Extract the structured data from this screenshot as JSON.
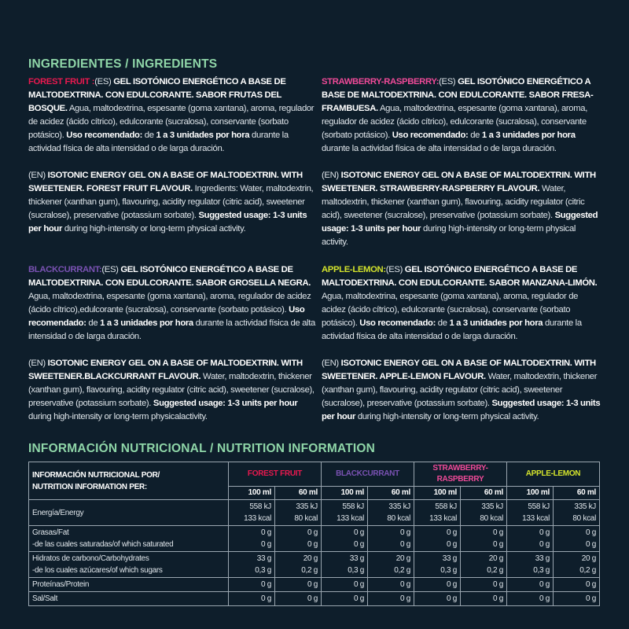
{
  "ingredients_title": "INGREDIENTES / INGREDIENTS",
  "nutrition_title": "INFORMACIÓN NUTRICIONAL / NUTRITION INFORMATION",
  "colors": {
    "forest_fruit": "#e8194f",
    "blackcurrant": "#7a52b3",
    "strawberry_raspberry": "#ef4a98",
    "apple_lemon": "#d3e32c",
    "heading": "#8fd6a8"
  },
  "products": [
    {
      "name": "FOREST FRUIT :",
      "color": "#e8194f",
      "es": [
        [
          "(ES) ",
          0
        ],
        [
          "GEL ISOTÓNICO ENERGÉTICO A BASE DE MALTODEXTRINA. CON EDULCORANTE. SABOR FRUTAS DEL BOSQUE.",
          1
        ],
        [
          " Agua, maltodextrina, espesante (goma xantana), aroma, regulador de acidez (ácido cítrico), edulcorante (sucralosa), conservante (sorbato potásico). ",
          0
        ],
        [
          "Uso recomendado:",
          1
        ],
        [
          " de ",
          0
        ],
        [
          "1 a 3 unidades por hora",
          1
        ],
        [
          " durante la actividad física de alta intensidad o de larga duración.",
          0
        ]
      ],
      "en": [
        [
          "(EN) ",
          0
        ],
        [
          "ISOTONIC ENERGY GEL ON A BASE OF MALTODEXTRIN. WITH SWEETENER. FOREST FRUIT FLAVOUR.",
          1
        ],
        [
          " Ingredients: Water, maltodextrin, thickener (xanthan gum), flavouring, acidity regulator (citric acid), sweetener (sucralose), preservative (potassium sorbate). ",
          0
        ],
        [
          "Suggested usage: 1-3 units per hour",
          1
        ],
        [
          " during high-intensity or long-term physical activity.",
          0
        ]
      ]
    },
    {
      "name": "STRAWBERRY-RASPBERRY:",
      "color": "#ef4a98",
      "es": [
        [
          "(ES) ",
          0
        ],
        [
          "GEL ISOTÓNICO ENERGÉTICO A BASE DE MALTODEXTRINA. CON EDULCORANTE. SABOR FRESA-FRAMBUESA.",
          1
        ],
        [
          " Agua, maltodextrina, espesante (goma xantana), aroma, regulador de acidez (ácido cítrico), edulcorante (sucralosa), conservante (sorbato potásico). ",
          0
        ],
        [
          "Uso recomendado:",
          1
        ],
        [
          " de ",
          0
        ],
        [
          "1 a 3 unidades por hora",
          1
        ],
        [
          " durante la actividad física de alta intensidad o de larga duración.",
          0
        ]
      ],
      "en": [
        [
          "(EN) ",
          0
        ],
        [
          "ISOTONIC ENERGY GEL ON A BASE OF MALTODEXTRIN. WITH SWEETENER. STRAWBERRY-RASPBERRY FLAVOUR.",
          1
        ],
        [
          "  Water, maltodextrin, thickener (xanthan gum), flavouring, acidity regulator (citric acid), sweetener (sucralose), preservative (potassium sorbate). ",
          0
        ],
        [
          "Suggested usage: 1-3 units per hour",
          1
        ],
        [
          " during high-intensity or long-term physical activity.",
          0
        ]
      ]
    },
    {
      "name": "BLACKCURRANT:",
      "color": "#7a52b3",
      "es": [
        [
          "(ES) ",
          0
        ],
        [
          "GEL ISOTÓNICO ENERGÉTICO A BASE DE MALTODEXTRINA. CON EDULCORANTE. SABOR GROSELLA NEGRA.",
          1
        ],
        [
          " Agua, maltodextrina, espesante (goma xantana), aroma, regulador de acidez (ácido cítrico),edulcorante (sucralosa), conservante (sorbato potásico). ",
          0
        ],
        [
          "Uso recomendado:",
          1
        ],
        [
          " de ",
          0
        ],
        [
          "1 a 3 unidades por hora",
          1
        ],
        [
          " durante la actividad física de alta intensidad o de larga duración.",
          0
        ]
      ],
      "en": [
        [
          "(EN) ",
          0
        ],
        [
          "ISOTONIC ENERGY GEL ON A BASE OF MALTODEXTRIN. WITH SWEETENER.BLACKCURRANT FLAVOUR.",
          1
        ],
        [
          " Water, maltodextrin, thickener (xanthan gum), flavouring, acidity regulator (citric acid), sweetener (sucralose), preservative (potassium sorbate). ",
          0
        ],
        [
          "Suggested usage: 1-3 units per hour",
          1
        ],
        [
          " during high-intensity or long-term physicalactivity.",
          0
        ]
      ]
    },
    {
      "name": "APPLE-LEMON:",
      "color": "#d3e32c",
      "es": [
        [
          "(ES) ",
          0
        ],
        [
          "GEL ISOTÓNICO ENERGÉTICO A BASE DE MALTODEXTRINA. CON EDULCORANTE. SABOR MANZANA-LIMÓN.",
          1
        ],
        [
          " Agua, maltodextrina, espesante (goma xantana), aroma, regulador de acidez (ácido cítrico), edulcorante (sucralosa), conservante (sorbato potásico). ",
          0
        ],
        [
          "Uso recomendado:",
          1
        ],
        [
          " de ",
          0
        ],
        [
          "1 a 3 unidades por hora",
          1
        ],
        [
          " durante la actividad física de alta intensidad o de larga duración.",
          0
        ]
      ],
      "en": [
        [
          "(EN) ",
          0
        ],
        [
          "ISOTONIC ENERGY GEL ON A BASE OF MALTODEXTRIN. WITH SWEETENER. APPLE-LEMON FLAVOUR.",
          1
        ],
        [
          " Water, maltodextrin, thickener (xanthan gum), flavouring, acidity regulator (citric acid), sweetener (sucralose), preservative (potassium sorbate). ",
          0
        ],
        [
          "Suggested usage: 1-3 units per hour",
          1
        ],
        [
          " during high-intensity or long-term physical activity.",
          0
        ]
      ]
    }
  ],
  "table": {
    "header_label": [
      "INFORMACIÓN NUTRICIONAL POR/",
      "NUTRITION INFORMATION PER:"
    ],
    "flavours": [
      {
        "name": "FOREST FRUIT",
        "color": "#e8194f"
      },
      {
        "name": "BLACKCURRANT",
        "color": "#7a52b3"
      },
      {
        "name": "STRAWBERRY-RASPBERRY",
        "color": "#ef4a98"
      },
      {
        "name": "APPLE-LEMON",
        "color": "#d3e32c"
      }
    ],
    "units": [
      "100 ml",
      "60 ml"
    ],
    "rows": [
      {
        "labels": [
          "Energía/Energy"
        ],
        "values": [
          [
            "558 kJ",
            "133 kcal"
          ],
          [
            "335 kJ",
            "80 kcal"
          ]
        ]
      },
      {
        "labels": [
          "Grasas/Fat",
          "-de las cuales saturadas/of which saturated"
        ],
        "values": [
          [
            "0 g",
            "0 g"
          ],
          [
            "0 g",
            "0 g"
          ]
        ]
      },
      {
        "labels": [
          "Hidratos de carbono/Carbohydrates",
          "-de los cuales azúcares/of which sugars"
        ],
        "values": [
          [
            "33 g",
            "0,3 g"
          ],
          [
            "20 g",
            "0,2 g"
          ]
        ]
      },
      {
        "labels": [
          "Proteínas/Protein"
        ],
        "values": [
          [
            "0 g"
          ],
          [
            "0 g"
          ]
        ]
      },
      {
        "labels": [
          "Sal/Salt"
        ],
        "values": [
          [
            "0 g"
          ],
          [
            "0 g"
          ]
        ]
      }
    ]
  }
}
